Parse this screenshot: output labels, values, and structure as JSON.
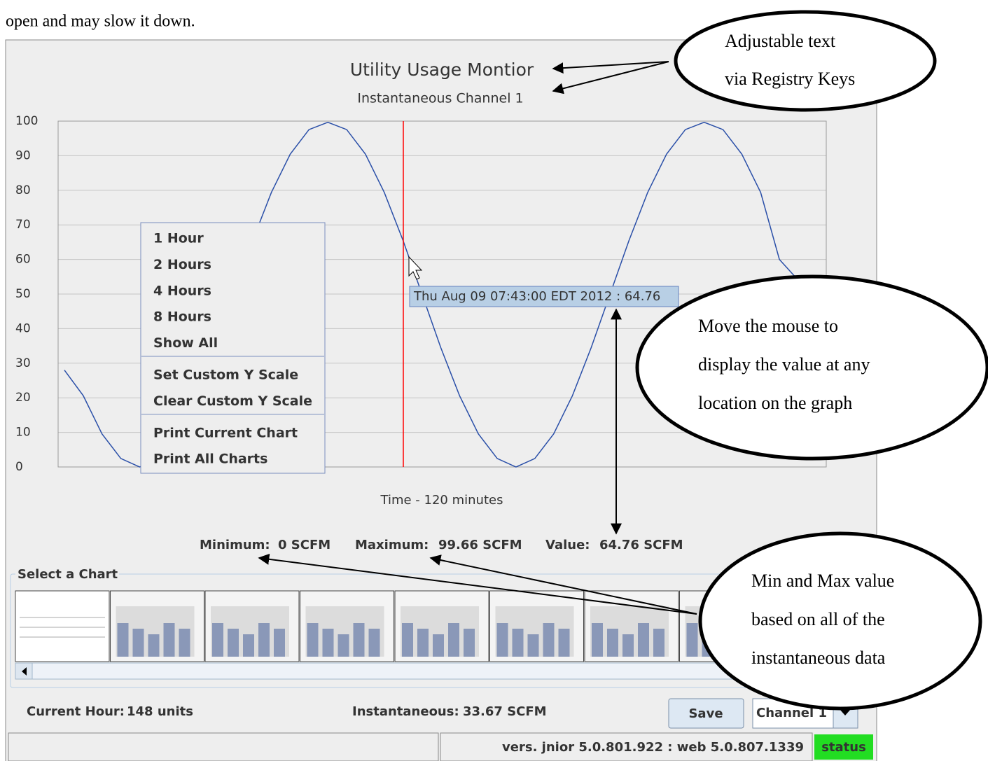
{
  "intro": "open and may slow it down.",
  "chart_data": {
    "type": "line",
    "title": "Utility Usage Montior",
    "subtitle": "Instantaneous Channel 1",
    "x_label": "Time - 120 minutes",
    "values": [
      28,
      20.6,
      9.55,
      2.45,
      0,
      2.45,
      9.55,
      20.6,
      34.55,
      50,
      65.45,
      79.4,
      90.45,
      97.55,
      99.66,
      97.55,
      90.45,
      79.4,
      65.45,
      50,
      34.55,
      20.6,
      9.55,
      2.45,
      0,
      2.45,
      9.55,
      20.6,
      34.55,
      50,
      65.45,
      79.4,
      90.45,
      97.55,
      99.66,
      97.55,
      90.45,
      79.4,
      60,
      54
    ],
    "color": "#2a4fa8",
    "ylim": [
      0,
      100
    ],
    "yticks": [
      0,
      10,
      20,
      30,
      40,
      50,
      60,
      70,
      80,
      90,
      100
    ],
    "grid": true,
    "tooltip": "Thu Aug 09 07:43:00 EDT 2012 : 64.76"
  },
  "menu": [
    [
      "1 Hour",
      "2 Hours",
      "4 Hours",
      "8 Hours",
      "Show All"
    ],
    [
      "Set Custom Y Scale",
      "Clear Custom Y Scale"
    ],
    [
      "Print Current Chart",
      "Print All Charts"
    ]
  ],
  "stats": [
    {
      "label": "Minimum:",
      "value": "0 SCFM"
    },
    {
      "label": "Maximum:",
      "value": "99.66 SCFM"
    },
    {
      "label": "Value:",
      "value": "64.76 SCFM"
    }
  ],
  "panel_title": "Select a Chart",
  "footer": {
    "current_hour_label": "Current Hour:",
    "current_hour": "148 units",
    "instantaneous_label": "Instantaneous:",
    "instantaneous": "33.67 SCFM",
    "save": "Save",
    "channel": "Channel 1"
  },
  "status_bar": {
    "version": "vers. jnior 5.0.801.922 : web 5.0.807.1339",
    "status": "status"
  },
  "callouts": [
    [
      "Adjustable text",
      "via Registry Keys"
    ],
    [
      "Move the mouse to",
      "display the value at any",
      "location on the graph"
    ],
    [
      "Min and Max value",
      "based on all of the",
      "instantaneous data"
    ]
  ]
}
